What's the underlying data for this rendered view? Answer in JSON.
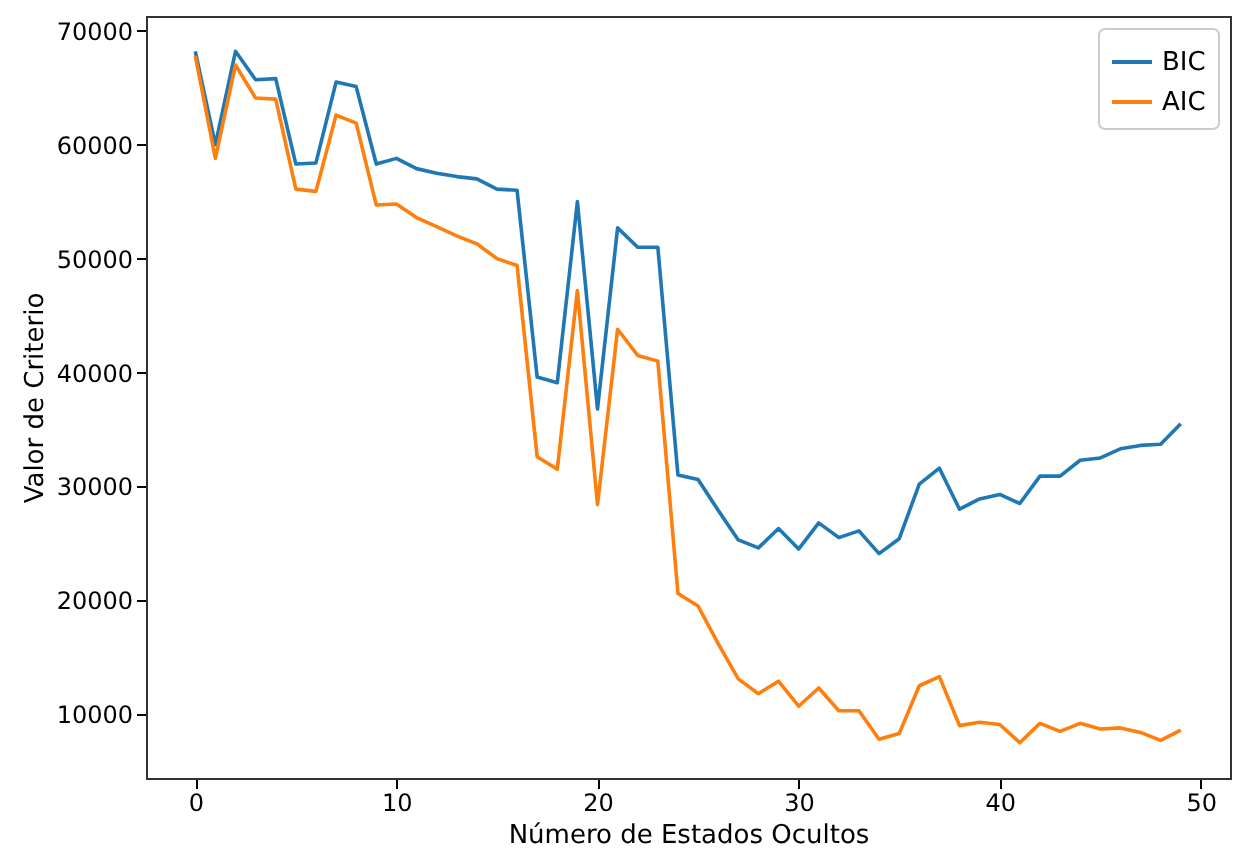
{
  "chart_data": {
    "type": "line",
    "xlabel": "Número de Estados Ocultos",
    "ylabel": "Valor de Criterio",
    "x": [
      0,
      1,
      2,
      3,
      4,
      5,
      6,
      7,
      8,
      9,
      10,
      11,
      12,
      13,
      14,
      15,
      16,
      17,
      18,
      19,
      20,
      21,
      22,
      23,
      24,
      25,
      26,
      27,
      28,
      29,
      30,
      31,
      32,
      33,
      34,
      35,
      36,
      37,
      38,
      39,
      40,
      41,
      42,
      43,
      44,
      45,
      46,
      47,
      48,
      49
    ],
    "series": [
      {
        "name": "BIC",
        "color": "#1f77b4",
        "values": [
          68200,
          60000,
          68200,
          65700,
          65800,
          58300,
          58400,
          65500,
          65100,
          58300,
          58800,
          57900,
          57500,
          57200,
          57000,
          56100,
          56000,
          39600,
          39100,
          55000,
          36800,
          52700,
          51000,
          51000,
          31000,
          30600,
          27900,
          25300,
          24600,
          26300,
          24500,
          26800,
          25500,
          26100,
          24100,
          25400,
          30200,
          31600,
          28000,
          28900,
          29300,
          28500,
          30900,
          30900,
          32300,
          32500,
          33300,
          33600,
          33700,
          35500
        ]
      },
      {
        "name": "AIC",
        "color": "#ff7f0e",
        "values": [
          67800,
          58800,
          67000,
          64100,
          64000,
          56100,
          55900,
          62600,
          61900,
          54700,
          54800,
          53600,
          52800,
          52000,
          51300,
          50000,
          49400,
          32600,
          31500,
          47200,
          28400,
          43800,
          41500,
          41000,
          20600,
          19500,
          16200,
          13100,
          11800,
          12900,
          10700,
          12300,
          10300,
          10300,
          7800,
          8300,
          12500,
          13300,
          9000,
          9300,
          9100,
          7500,
          9200,
          8500,
          9200,
          8700,
          8800,
          8400,
          7700,
          8600
        ]
      }
    ],
    "xlim": [
      -2.45,
      51.45
    ],
    "xticks": [
      0,
      10,
      20,
      30,
      40,
      50
    ],
    "ylim": [
      4400,
      71300
    ],
    "yticks": [
      10000,
      20000,
      30000,
      40000,
      50000,
      60000,
      70000
    ],
    "grid": false,
    "legend": "top right",
    "marker": "none",
    "line_style": "solid"
  }
}
